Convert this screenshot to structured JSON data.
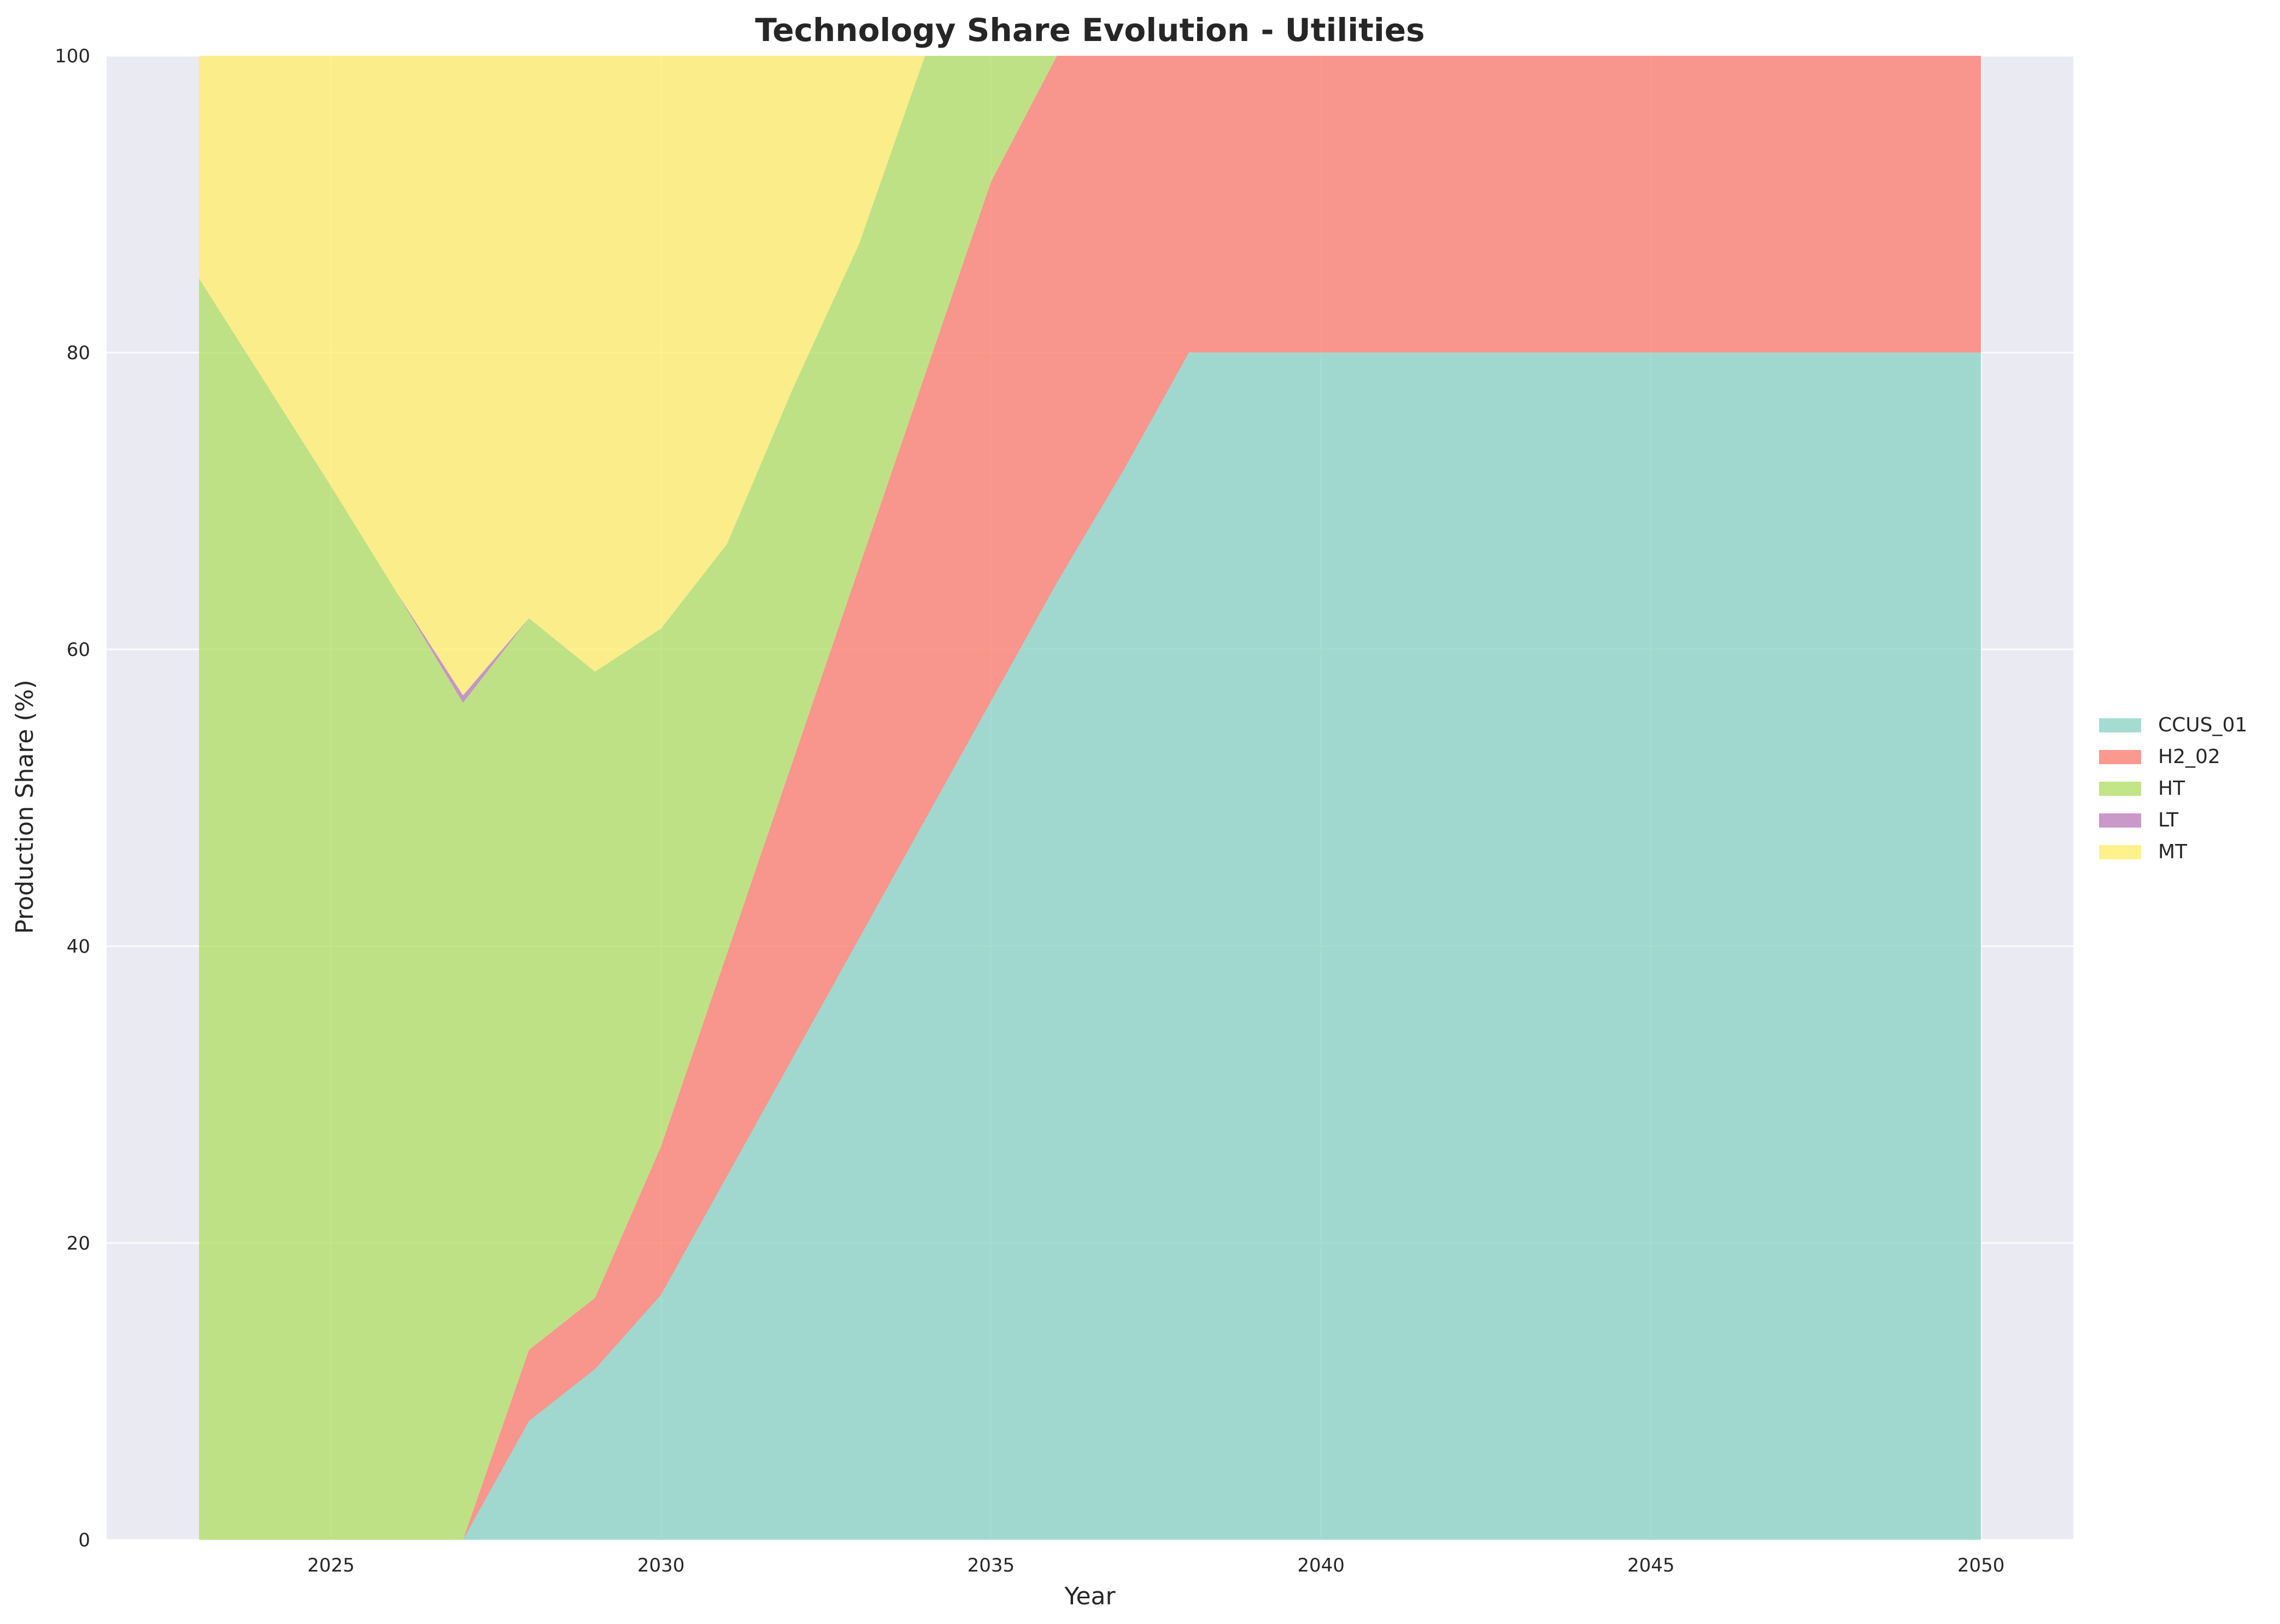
{
  "chart_data": {
    "type": "area",
    "stacked": true,
    "title": "Technology Share Evolution - Utilities",
    "xlabel": "Year",
    "ylabel": "Production Share (%)",
    "xlim": [
      2021.6,
      2051.4
    ],
    "ylim": [
      0,
      100
    ],
    "xticks": [
      2025,
      2030,
      2035,
      2040,
      2045,
      2050
    ],
    "yticks": [
      0,
      20,
      40,
      60,
      80,
      100
    ],
    "grid": true,
    "legend_position": "right-center",
    "colors": {
      "plot_background": "#eaeaf2",
      "grid": "#ffffff"
    },
    "x": [
      2023,
      2024,
      2025,
      2026,
      2027,
      2028,
      2029,
      2030,
      2031,
      2032,
      2033,
      2034,
      2035,
      2036,
      2037,
      2038,
      2039,
      2040,
      2041,
      2042,
      2043,
      2044,
      2045,
      2046,
      2047,
      2048,
      2049,
      2050
    ],
    "series": [
      {
        "name": "CCUS_01",
        "color": "#8dd3c7",
        "values": [
          0,
          0,
          0,
          0,
          0,
          8,
          11.5,
          16.5,
          24.5,
          32.5,
          40.5,
          48.5,
          56.5,
          64.5,
          72,
          80,
          80,
          80,
          80,
          80,
          80,
          80,
          80,
          80,
          80,
          80,
          80,
          80
        ]
      },
      {
        "name": "H2_02",
        "color": "#fb8072",
        "values": [
          0,
          0,
          0,
          0,
          0,
          4.8,
          4.8,
          10,
          15,
          20,
          25,
          30,
          35,
          35.5,
          28,
          20,
          20,
          20,
          20,
          20,
          20,
          20,
          20,
          20,
          20,
          20,
          20,
          20
        ]
      },
      {
        "name": "HT",
        "color": "#b3de69",
        "values": [
          85,
          78,
          71,
          63.8,
          56.4,
          49.3,
          42.2,
          34.9,
          27.6,
          25.1,
          21.8,
          21.5,
          8.5,
          0,
          0,
          0,
          0,
          0,
          0,
          0,
          0,
          0,
          0,
          0,
          0,
          0,
          0,
          0
        ]
      },
      {
        "name": "LT",
        "color": "#bc80bd",
        "values": [
          0,
          0,
          0,
          0,
          0.5,
          0,
          0,
          0,
          0,
          0,
          0,
          0,
          0,
          0,
          0,
          0,
          0,
          0,
          0,
          0,
          0,
          0,
          0,
          0,
          0,
          0,
          0,
          0
        ]
      },
      {
        "name": "MT",
        "color": "#ffed6f",
        "values": [
          15,
          22,
          29,
          36.2,
          43.1,
          37.9,
          41.5,
          38.6,
          32.9,
          22.4,
          12.7,
          0,
          0,
          0,
          0,
          0,
          0,
          0,
          0,
          0,
          0,
          0,
          0,
          0,
          0,
          0,
          0,
          0
        ]
      }
    ]
  }
}
